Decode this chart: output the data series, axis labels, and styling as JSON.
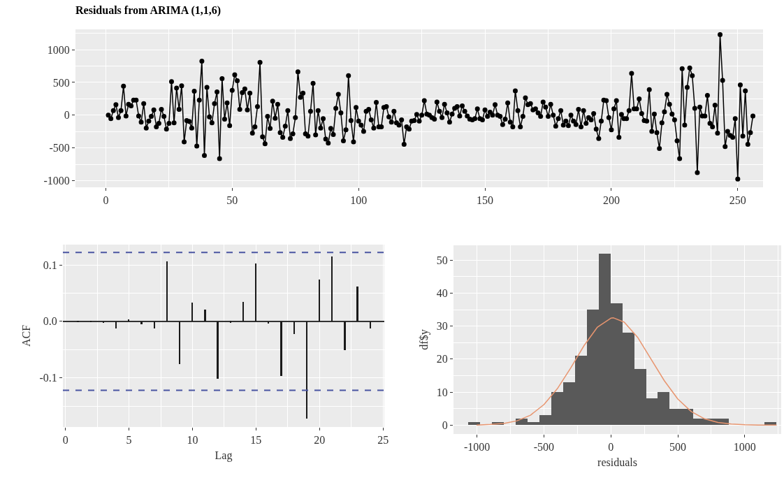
{
  "chart_data": [
    {
      "type": "line",
      "title": "Residuals from ARIMA (1,1,6)",
      "color": "#000000",
      "marker": "circle",
      "line_style": "solid",
      "grid": true,
      "x": [
        1,
        2,
        3,
        4,
        5,
        6,
        7,
        8,
        9,
        10,
        11,
        12,
        13,
        14,
        15,
        16,
        17,
        18,
        19,
        20,
        21,
        22,
        23,
        24,
        25,
        26,
        27,
        28,
        29,
        30,
        31,
        32,
        33,
        34,
        35,
        36,
        37,
        38,
        39,
        40,
        41,
        42,
        43,
        44,
        45,
        46,
        47,
        48,
        49,
        50,
        51,
        52,
        53,
        54,
        55,
        56,
        57,
        58,
        59,
        60,
        61,
        62,
        63,
        64,
        65,
        66,
        67,
        68,
        69,
        70,
        71,
        72,
        73,
        74,
        75,
        76,
        77,
        78,
        79,
        80,
        81,
        82,
        83,
        84,
        85,
        86,
        87,
        88,
        89,
        90,
        91,
        92,
        93,
        94,
        95,
        96,
        97,
        98,
        99,
        100,
        101,
        102,
        103,
        104,
        105,
        106,
        107,
        108,
        109,
        110,
        111,
        112,
        113,
        114,
        115,
        116,
        117,
        118,
        119,
        120,
        121,
        122,
        123,
        124,
        125,
        126,
        127,
        128,
        129,
        130,
        131,
        132,
        133,
        134,
        135,
        136,
        137,
        138,
        139,
        140,
        141,
        142,
        143,
        144,
        145,
        146,
        147,
        148,
        149,
        150,
        151,
        152,
        153,
        154,
        155,
        156,
        157,
        158,
        159,
        160,
        161,
        162,
        163,
        164,
        165,
        166,
        167,
        168,
        169,
        170,
        171,
        172,
        173,
        174,
        175,
        176,
        177,
        178,
        179,
        180,
        181,
        182,
        183,
        184,
        185,
        186,
        187,
        188,
        189,
        190,
        191,
        192,
        193,
        194,
        195,
        196,
        197,
        198,
        199,
        200,
        201,
        202,
        203,
        204,
        205,
        206,
        207,
        208,
        209,
        210,
        211,
        212,
        213,
        214,
        215,
        216,
        217,
        218,
        219,
        220,
        221,
        222,
        223,
        224,
        225,
        226,
        227,
        228,
        229,
        230,
        231,
        232,
        233,
        234,
        235,
        236,
        237,
        238,
        239,
        240,
        241,
        242,
        243,
        244,
        245,
        246,
        247,
        248,
        249,
        250,
        251,
        252,
        253,
        254,
        255,
        256
      ],
      "values": [
        0,
        -53,
        71,
        160,
        -35,
        71,
        443,
        -11,
        167,
        142,
        230,
        230,
        -11,
        -106,
        177,
        -195,
        -89,
        -18,
        82,
        -177,
        -124,
        89,
        -18,
        -213,
        -124,
        514,
        -117,
        415,
        89,
        450,
        -408,
        -82,
        -96,
        -195,
        365,
        -472,
        230,
        826,
        -614,
        425,
        -25,
        -117,
        177,
        355,
        -663,
        557,
        -60,
        188,
        -160,
        379,
        617,
        525,
        89,
        344,
        401,
        82,
        337,
        -273,
        -177,
        131,
        805,
        -330,
        -436,
        -18,
        -202,
        213,
        -46,
        167,
        -266,
        -337,
        -167,
        71,
        -355,
        -284,
        -35,
        663,
        273,
        337,
        -284,
        -319,
        60,
        486,
        -301,
        71,
        -195,
        -53,
        -365,
        -426,
        -202,
        -294,
        106,
        319,
        35,
        -390,
        -223,
        603,
        -82,
        -408,
        117,
        -89,
        -152,
        -248,
        60,
        89,
        -71,
        -195,
        195,
        -177,
        -177,
        117,
        131,
        -25,
        -106,
        60,
        -117,
        -152,
        -71,
        -443,
        -177,
        -213,
        -89,
        -82,
        11,
        -89,
        0,
        223,
        18,
        0,
        -35,
        -60,
        202,
        60,
        -35,
        167,
        35,
        -106,
        18,
        106,
        131,
        -11,
        142,
        60,
        -11,
        -60,
        -71,
        -53,
        96,
        -53,
        -71,
        82,
        -18,
        46,
        0,
        160,
        0,
        -18,
        -142,
        -60,
        188,
        -106,
        -177,
        372,
        71,
        -177,
        -18,
        266,
        160,
        177,
        82,
        96,
        35,
        -18,
        202,
        124,
        -18,
        167,
        0,
        -167,
        -53,
        71,
        -152,
        -89,
        -160,
        0,
        -89,
        -142,
        89,
        -177,
        71,
        -124,
        -35,
        -71,
        25,
        -213,
        -355,
        -89,
        230,
        223,
        -35,
        -223,
        96,
        223,
        -337,
        11,
        -53,
        -53,
        71,
        638,
        96,
        96,
        248,
        25,
        -82,
        -89,
        390,
        -248,
        18,
        -266,
        -507,
        -117,
        53,
        319,
        167,
        18,
        -71,
        -390,
        -663,
        709,
        -152,
        426,
        720,
        603,
        106,
        -876,
        124,
        -11,
        -11,
        301,
        -124,
        -177,
        152,
        -273,
        1230,
        532,
        -479,
        -248,
        -309,
        -337,
        -53,
        -975,
        461,
        -319,
        372,
        -443,
        -266,
        -11
      ],
      "xlim": [
        -12,
        260
      ],
      "ylim": [
        -1100,
        1310
      ],
      "xticks": [
        0,
        50,
        100,
        150,
        200,
        250
      ],
      "yticks": [
        -1000,
        -500,
        0,
        500,
        1000
      ]
    },
    {
      "type": "bar",
      "xlabel": "Lag",
      "ylabel": "ACF",
      "color": "#1a1a1a",
      "grid": true,
      "x": [
        1,
        2,
        3,
        4,
        5,
        6,
        7,
        8,
        9,
        10,
        11,
        12,
        13,
        14,
        15,
        16,
        17,
        18,
        19,
        20,
        21,
        22,
        23,
        24
      ],
      "values": [
        -0.001,
        -0.001,
        -0.003,
        -0.013,
        0.003,
        -0.005,
        -0.012,
        0.106,
        -0.075,
        0.033,
        0.021,
        -0.101,
        -0.002,
        0.034,
        0.103,
        -0.004,
        -0.097,
        -0.022,
        -0.172,
        0.074,
        0.115,
        -0.051,
        0.062,
        -0.013
      ],
      "ref_lines": [
        {
          "axis": "y",
          "value": 0.122,
          "color": "#4a55a2",
          "line_style": "dashed"
        },
        {
          "axis": "y",
          "value": -0.122,
          "color": "#4a55a2",
          "line_style": "dashed"
        }
      ],
      "xlim": [
        -0.2,
        25.1
      ],
      "ylim": [
        -0.187,
        0.136
      ],
      "xticks": [
        0,
        5,
        10,
        15,
        20,
        25
      ],
      "yticks": [
        -0.1,
        {
          "value": 0,
          "label": "0.0"
        },
        0.1
      ]
    },
    {
      "type": "histogram",
      "xlabel": "residuals",
      "ylabel": "df$y",
      "grid": true,
      "bins": [
        -1065,
        -976.5,
        -888,
        -799.5,
        -711,
        -622.5,
        -534,
        -445.5,
        -357,
        -268.5,
        -180,
        -91.5,
        -3,
        85.5,
        174,
        262.5,
        351,
        439.5,
        528,
        616.5,
        705,
        793.5,
        882,
        970.5,
        1059,
        1147.5,
        1236
      ],
      "series": [
        {
          "type": "histogram",
          "color": "#595959",
          "values": [
            1,
            0,
            1,
            0,
            2,
            1,
            3,
            10,
            13,
            21,
            35,
            52,
            37,
            28,
            17,
            8,
            10,
            5,
            5,
            2,
            2,
            2,
            0,
            0,
            0,
            1
          ]
        },
        {
          "type": "line",
          "color": "#e8956f",
          "marker": "none",
          "line_style": "solid",
          "x": [
            -1000,
            -900,
            -800,
            -700,
            -600,
            -500,
            -400,
            -300,
            -200,
            -100,
            0,
            20,
            100,
            200,
            300,
            400,
            500,
            600,
            700,
            800,
            900,
            1000,
            1100,
            1235
          ],
          "values": [
            0,
            0.2,
            0.5,
            1.3,
            3,
            6.2,
            11,
            17.3,
            24.1,
            29.7,
            32.4,
            32.5,
            31.2,
            26.6,
            20,
            13.4,
            7.9,
            4.1,
            1.9,
            0.8,
            0.3,
            0.1,
            0,
            0
          ]
        }
      ],
      "xlim": [
        -1175,
        1272
      ],
      "ylim": [
        -2.7,
        54.5
      ],
      "xticks": [
        -1000,
        -500,
        0,
        500,
        1000
      ],
      "yticks": [
        0,
        10,
        20,
        30,
        40,
        50
      ]
    }
  ]
}
